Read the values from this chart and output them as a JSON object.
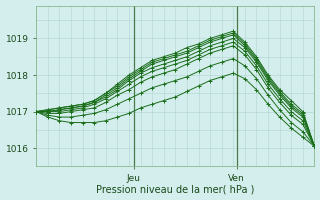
{
  "xlabel": "Pression niveau de la mer( hPa )",
  "background_color": "#d4eeed",
  "grid_color": "#b0d4d0",
  "line_color": "#1a6e1a",
  "ylim": [
    1015.5,
    1019.9
  ],
  "yticks": [
    1016,
    1017,
    1018,
    1019
  ],
  "x_day_labels": [
    [
      "Jeu",
      0.35
    ],
    [
      "Ven",
      0.72
    ]
  ],
  "vline_positions": [
    0.35,
    0.72
  ],
  "n_points": 25,
  "series": [
    [
      1017.0,
      1017.05,
      1017.1,
      1017.15,
      1017.2,
      1017.3,
      1017.5,
      1017.75,
      1018.0,
      1018.2,
      1018.4,
      1018.5,
      1018.6,
      1018.75,
      1018.85,
      1019.0,
      1019.1,
      1019.2,
      1018.9,
      1018.5,
      1018.0,
      1017.6,
      1017.3,
      1017.0,
      1016.05
    ],
    [
      1017.0,
      1017.05,
      1017.1,
      1017.15,
      1017.2,
      1017.3,
      1017.5,
      1017.7,
      1017.95,
      1018.15,
      1018.35,
      1018.45,
      1018.55,
      1018.65,
      1018.8,
      1018.95,
      1019.05,
      1019.15,
      1018.85,
      1018.45,
      1017.95,
      1017.55,
      1017.2,
      1016.95,
      1016.05
    ],
    [
      1017.0,
      1017.0,
      1017.05,
      1017.1,
      1017.15,
      1017.25,
      1017.45,
      1017.65,
      1017.9,
      1018.1,
      1018.3,
      1018.4,
      1018.5,
      1018.6,
      1018.75,
      1018.9,
      1019.0,
      1019.1,
      1018.8,
      1018.4,
      1017.9,
      1017.5,
      1017.15,
      1016.9,
      1016.05
    ],
    [
      1017.0,
      1017.0,
      1017.05,
      1017.1,
      1017.15,
      1017.25,
      1017.4,
      1017.6,
      1017.85,
      1018.05,
      1018.2,
      1018.3,
      1018.4,
      1018.5,
      1018.65,
      1018.8,
      1018.9,
      1019.0,
      1018.75,
      1018.35,
      1017.85,
      1017.45,
      1017.1,
      1016.85,
      1016.05
    ],
    [
      1017.0,
      1017.0,
      1017.0,
      1017.05,
      1017.1,
      1017.2,
      1017.35,
      1017.55,
      1017.75,
      1017.95,
      1018.1,
      1018.2,
      1018.3,
      1018.4,
      1018.55,
      1018.7,
      1018.8,
      1018.9,
      1018.65,
      1018.25,
      1017.75,
      1017.35,
      1017.0,
      1016.75,
      1016.05
    ],
    [
      1017.0,
      1016.95,
      1016.95,
      1017.0,
      1017.05,
      1017.1,
      1017.25,
      1017.45,
      1017.6,
      1017.8,
      1017.95,
      1018.05,
      1018.15,
      1018.3,
      1018.45,
      1018.6,
      1018.7,
      1018.8,
      1018.55,
      1018.15,
      1017.65,
      1017.25,
      1016.9,
      1016.65,
      1016.05
    ],
    [
      1017.0,
      1016.9,
      1016.85,
      1016.85,
      1016.9,
      1016.95,
      1017.05,
      1017.2,
      1017.35,
      1017.5,
      1017.65,
      1017.75,
      1017.85,
      1017.95,
      1018.1,
      1018.25,
      1018.35,
      1018.45,
      1018.25,
      1017.9,
      1017.45,
      1017.05,
      1016.7,
      1016.45,
      1016.05
    ],
    [
      1017.0,
      1016.85,
      1016.75,
      1016.7,
      1016.7,
      1016.7,
      1016.75,
      1016.85,
      1016.95,
      1017.1,
      1017.2,
      1017.3,
      1017.4,
      1017.55,
      1017.7,
      1017.85,
      1017.95,
      1018.05,
      1017.9,
      1017.6,
      1017.2,
      1016.85,
      1016.55,
      1016.3,
      1016.05
    ]
  ]
}
